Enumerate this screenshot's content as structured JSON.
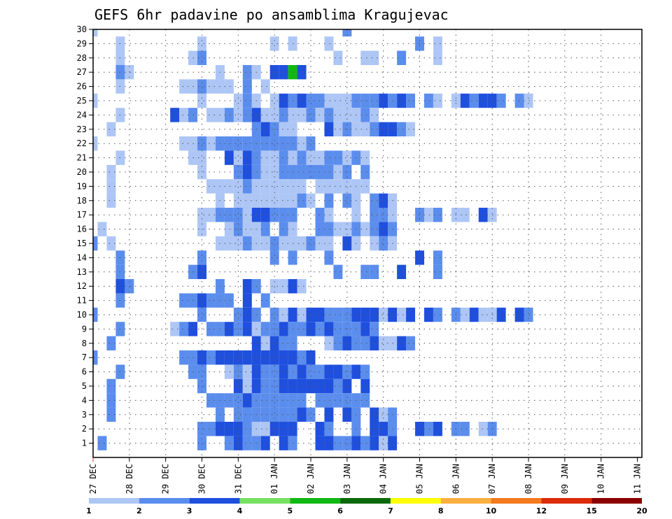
{
  "chart_data": {
    "type": "heatmap",
    "title": "GEFS 6hr padavine po ansamblima Kragujevac",
    "xlabel": "",
    "ylabel": "",
    "x_tick_labels": [
      "27 DEC",
      "28 DEC",
      "29 DEC",
      "30 DEC",
      "31 DEC",
      "01 JAN",
      "02 JAN",
      "03 JAN",
      "04 JAN",
      "05 JAN",
      "06 JAN",
      "07 JAN",
      "08 JAN",
      "09 JAN",
      "10 JAN",
      "11 JAN"
    ],
    "y_range": [
      0,
      30
    ],
    "y_tick_labels": [
      "1",
      "2",
      "3",
      "4",
      "5",
      "6",
      "7",
      "8",
      "9",
      "10",
      "11",
      "12",
      "13",
      "14",
      "15",
      "16",
      "17",
      "18",
      "19",
      "20",
      "21",
      "22",
      "23",
      "24",
      "25",
      "26",
      "27",
      "28",
      "29",
      "30"
    ],
    "n_time_steps": 61,
    "grid": true,
    "legend_position": "bottom",
    "color_scale": {
      "labels": [
        "1",
        "2",
        "3",
        "4",
        "5",
        "6",
        "7",
        "8",
        "10",
        "12",
        "15",
        "20"
      ],
      "colors": [
        "#aec6f5",
        "#5b8ded",
        "#1f4fdd",
        "#78e060",
        "#12b812",
        "#0a6a0a",
        "#ffff00",
        "#fbb040",
        "#f4791e",
        "#dd2a08",
        "#8b0000"
      ]
    },
    "values": [
      [
        0,
        0,
        0
      ],
      [
        0,
        28,
        1
      ],
      [
        1,
        3,
        0
      ],
      [
        1,
        12,
        0
      ],
      [
        1,
        20,
        0
      ],
      [
        1,
        22,
        0
      ],
      [
        1,
        26,
        0
      ],
      [
        1,
        36,
        1
      ],
      [
        1,
        38,
        0
      ],
      [
        2,
        3,
        0
      ],
      [
        2,
        11,
        0
      ],
      [
        2,
        12,
        1
      ],
      [
        2,
        27,
        0
      ],
      [
        2,
        30,
        0
      ],
      [
        2,
        31,
        0
      ],
      [
        2,
        34,
        1
      ],
      [
        2,
        38,
        0
      ],
      [
        3,
        3,
        1
      ],
      [
        3,
        4,
        0
      ],
      [
        3,
        14,
        0
      ],
      [
        3,
        17,
        1
      ],
      [
        3,
        18,
        0
      ],
      [
        3,
        20,
        2
      ],
      [
        3,
        21,
        2
      ],
      [
        3,
        22,
        4
      ],
      [
        3,
        23,
        2
      ],
      [
        4,
        3,
        0
      ],
      [
        4,
        10,
        0
      ],
      [
        4,
        11,
        0
      ],
      [
        4,
        12,
        1
      ],
      [
        4,
        13,
        0
      ],
      [
        4,
        14,
        0
      ],
      [
        4,
        15,
        0
      ],
      [
        4,
        17,
        1
      ],
      [
        4,
        19,
        0
      ],
      [
        5,
        0,
        0
      ],
      [
        5,
        12,
        0
      ],
      [
        5,
        16,
        0
      ],
      [
        5,
        17,
        1
      ],
      [
        5,
        18,
        0
      ],
      [
        5,
        20,
        0
      ],
      [
        5,
        21,
        2
      ],
      [
        5,
        22,
        1
      ],
      [
        5,
        23,
        2
      ],
      [
        5,
        24,
        1
      ],
      [
        5,
        25,
        1
      ],
      [
        5,
        26,
        0
      ],
      [
        5,
        27,
        0
      ],
      [
        5,
        28,
        0
      ],
      [
        5,
        29,
        1
      ],
      [
        5,
        30,
        1
      ],
      [
        5,
        31,
        1
      ],
      [
        5,
        32,
        2
      ],
      [
        5,
        33,
        1
      ],
      [
        5,
        34,
        2
      ],
      [
        5,
        35,
        1
      ],
      [
        5,
        37,
        1
      ],
      [
        5,
        38,
        0
      ],
      [
        5,
        40,
        0
      ],
      [
        5,
        41,
        2
      ],
      [
        5,
        42,
        1
      ],
      [
        5,
        43,
        2
      ],
      [
        5,
        44,
        2
      ],
      [
        5,
        45,
        1
      ],
      [
        5,
        47,
        1
      ],
      [
        5,
        48,
        0
      ],
      [
        6,
        3,
        0
      ],
      [
        6,
        9,
        2
      ],
      [
        6,
        10,
        0
      ],
      [
        6,
        11,
        1
      ],
      [
        6,
        13,
        0
      ],
      [
        6,
        14,
        0
      ],
      [
        6,
        15,
        1
      ],
      [
        6,
        16,
        0
      ],
      [
        6,
        17,
        1
      ],
      [
        6,
        18,
        2
      ],
      [
        6,
        19,
        0
      ],
      [
        6,
        20,
        0
      ],
      [
        6,
        21,
        1
      ],
      [
        6,
        22,
        0
      ],
      [
        6,
        23,
        0
      ],
      [
        6,
        24,
        1
      ],
      [
        6,
        25,
        0
      ],
      [
        6,
        26,
        1
      ],
      [
        6,
        27,
        0
      ],
      [
        6,
        28,
        0
      ],
      [
        6,
        29,
        0
      ],
      [
        6,
        30,
        1
      ],
      [
        6,
        31,
        0
      ],
      [
        7,
        2,
        0
      ],
      [
        7,
        18,
        1
      ],
      [
        7,
        19,
        2
      ],
      [
        7,
        20,
        1
      ],
      [
        7,
        21,
        0
      ],
      [
        7,
        22,
        0
      ],
      [
        7,
        26,
        2
      ],
      [
        7,
        27,
        0
      ],
      [
        7,
        28,
        1
      ],
      [
        7,
        29,
        0
      ],
      [
        7,
        30,
        0
      ],
      [
        7,
        31,
        1
      ],
      [
        7,
        32,
        2
      ],
      [
        7,
        33,
        2
      ],
      [
        7,
        34,
        1
      ],
      [
        7,
        35,
        0
      ],
      [
        8,
        0,
        0
      ],
      [
        8,
        10,
        0
      ],
      [
        8,
        11,
        0
      ],
      [
        8,
        12,
        1
      ],
      [
        8,
        13,
        0
      ],
      [
        8,
        14,
        1
      ],
      [
        8,
        15,
        1
      ],
      [
        8,
        16,
        1
      ],
      [
        8,
        17,
        1
      ],
      [
        8,
        18,
        1
      ],
      [
        8,
        19,
        1
      ],
      [
        8,
        20,
        1
      ],
      [
        8,
        21,
        1
      ],
      [
        8,
        22,
        1
      ],
      [
        8,
        23,
        0
      ],
      [
        8,
        24,
        1
      ],
      [
        9,
        3,
        0
      ],
      [
        9,
        11,
        0
      ],
      [
        9,
        12,
        0
      ],
      [
        9,
        15,
        2
      ],
      [
        9,
        16,
        0
      ],
      [
        9,
        17,
        2
      ],
      [
        9,
        18,
        1
      ],
      [
        9,
        19,
        0
      ],
      [
        9,
        20,
        0
      ],
      [
        9,
        21,
        1
      ],
      [
        9,
        22,
        0
      ],
      [
        9,
        23,
        1
      ],
      [
        9,
        24,
        0
      ],
      [
        9,
        25,
        0
      ],
      [
        9,
        26,
        1
      ],
      [
        9,
        27,
        1
      ],
      [
        9,
        28,
        0
      ],
      [
        9,
        29,
        1
      ],
      [
        9,
        30,
        0
      ],
      [
        10,
        2,
        0
      ],
      [
        10,
        12,
        0
      ],
      [
        10,
        16,
        1
      ],
      [
        10,
        17,
        2
      ],
      [
        10,
        18,
        1
      ],
      [
        10,
        19,
        0
      ],
      [
        10,
        20,
        0
      ],
      [
        10,
        21,
        1
      ],
      [
        10,
        22,
        1
      ],
      [
        10,
        23,
        1
      ],
      [
        10,
        24,
        1
      ],
      [
        10,
        25,
        1
      ],
      [
        10,
        26,
        1
      ],
      [
        10,
        27,
        0
      ],
      [
        10,
        28,
        1
      ],
      [
        10,
        30,
        1
      ],
      [
        11,
        2,
        0
      ],
      [
        11,
        13,
        0
      ],
      [
        11,
        14,
        0
      ],
      [
        11,
        15,
        0
      ],
      [
        11,
        16,
        0
      ],
      [
        11,
        17,
        1
      ],
      [
        11,
        18,
        0
      ],
      [
        11,
        19,
        0
      ],
      [
        11,
        20,
        0
      ],
      [
        11,
        21,
        0
      ],
      [
        11,
        22,
        0
      ],
      [
        11,
        23,
        0
      ],
      [
        11,
        25,
        0
      ],
      [
        11,
        26,
        0
      ],
      [
        11,
        27,
        0
      ],
      [
        11,
        28,
        0
      ],
      [
        11,
        29,
        0
      ],
      [
        11,
        30,
        0
      ],
      [
        12,
        2,
        0
      ],
      [
        12,
        14,
        0
      ],
      [
        12,
        16,
        0
      ],
      [
        12,
        17,
        0
      ],
      [
        12,
        18,
        0
      ],
      [
        12,
        19,
        0
      ],
      [
        12,
        20,
        0
      ],
      [
        12,
        21,
        0
      ],
      [
        12,
        22,
        0
      ],
      [
        12,
        23,
        1
      ],
      [
        12,
        24,
        0
      ],
      [
        12,
        26,
        1
      ],
      [
        12,
        28,
        1
      ],
      [
        12,
        29,
        0
      ],
      [
        12,
        31,
        1
      ],
      [
        12,
        32,
        2
      ],
      [
        12,
        33,
        0
      ],
      [
        13,
        12,
        0
      ],
      [
        13,
        13,
        0
      ],
      [
        13,
        14,
        1
      ],
      [
        13,
        15,
        1
      ],
      [
        13,
        16,
        1
      ],
      [
        13,
        17,
        0
      ],
      [
        13,
        18,
        2
      ],
      [
        13,
        19,
        2
      ],
      [
        13,
        20,
        1
      ],
      [
        13,
        21,
        1
      ],
      [
        13,
        22,
        1
      ],
      [
        13,
        25,
        1
      ],
      [
        13,
        26,
        0
      ],
      [
        13,
        29,
        0
      ],
      [
        13,
        31,
        1
      ],
      [
        13,
        32,
        1
      ],
      [
        13,
        33,
        0
      ],
      [
        13,
        36,
        1
      ],
      [
        13,
        37,
        0
      ],
      [
        13,
        38,
        1
      ],
      [
        13,
        40,
        0
      ],
      [
        13,
        41,
        0
      ],
      [
        13,
        43,
        2
      ],
      [
        13,
        44,
        0
      ],
      [
        14,
        1,
        0
      ],
      [
        14,
        12,
        0
      ],
      [
        14,
        15,
        0
      ],
      [
        14,
        16,
        1
      ],
      [
        14,
        17,
        0
      ],
      [
        14,
        18,
        0
      ],
      [
        14,
        19,
        1
      ],
      [
        14,
        21,
        1
      ],
      [
        14,
        22,
        0
      ],
      [
        14,
        25,
        1
      ],
      [
        14,
        26,
        1
      ],
      [
        14,
        27,
        0
      ],
      [
        14,
        28,
        0
      ],
      [
        14,
        29,
        1
      ],
      [
        14,
        30,
        0
      ],
      [
        14,
        31,
        1
      ],
      [
        14,
        32,
        2
      ],
      [
        14,
        33,
        1
      ],
      [
        15,
        2,
        0
      ],
      [
        15,
        14,
        0
      ],
      [
        15,
        15,
        0
      ],
      [
        15,
        16,
        0
      ],
      [
        15,
        17,
        1
      ],
      [
        15,
        18,
        0
      ],
      [
        15,
        19,
        0
      ],
      [
        15,
        20,
        1
      ],
      [
        15,
        21,
        0
      ],
      [
        15,
        22,
        0
      ],
      [
        15,
        23,
        0
      ],
      [
        15,
        24,
        1
      ],
      [
        15,
        25,
        0
      ],
      [
        15,
        26,
        0
      ],
      [
        15,
        28,
        1
      ],
      [
        15,
        29,
        0
      ],
      [
        15,
        31,
        0
      ],
      [
        15,
        32,
        1
      ],
      [
        15,
        33,
        0
      ]
    ],
    "value_note": "values are [member_row_index_from_top, time_step, color_index]; rendering script reproduces pattern"
  }
}
